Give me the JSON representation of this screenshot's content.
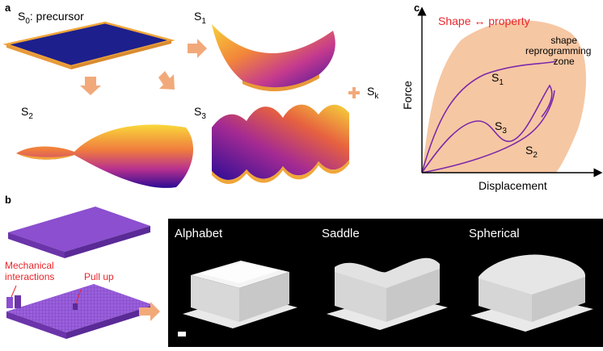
{
  "panels": {
    "a": {
      "letter": "a",
      "s0_label": "S",
      "s0_sub": "0",
      "s0_suffix": ": precursor",
      "s1_label": "S",
      "s1_sub": "1",
      "s2_label": "S",
      "s2_sub": "2",
      "s3_label": "S",
      "s3_sub": "3",
      "sk_plus": "+",
      "sk_label": "S",
      "sk_sub": "k"
    },
    "b": {
      "letter": "b",
      "mechanical_label_line1": "Mechanical",
      "mechanical_label_line2": "interactions",
      "pullup_label": "Pull up",
      "photos": [
        {
          "label": "Alphabet"
        },
        {
          "label": "Saddle"
        },
        {
          "label": "Spherical"
        }
      ]
    },
    "c": {
      "letter": "c",
      "title": "Shape ↔ property",
      "zone_line1": "shape",
      "zone_line2": "reprogramming",
      "zone_line3": "zone",
      "xlabel": "Displacement",
      "ylabel": "Force",
      "curve_labels": [
        {
          "base": "S",
          "sub": "1"
        },
        {
          "base": "S",
          "sub": "3"
        },
        {
          "base": "S",
          "sub": "2"
        }
      ]
    }
  },
  "colors": {
    "title_red": "#e8262b",
    "zone_fill": "#f6c7a3",
    "curve_purple": "#7b2aa8",
    "arrow_orange": "#f2a97a",
    "plate_purple": "#8b4fcf",
    "precursor_blue": "#1d1f8c"
  }
}
